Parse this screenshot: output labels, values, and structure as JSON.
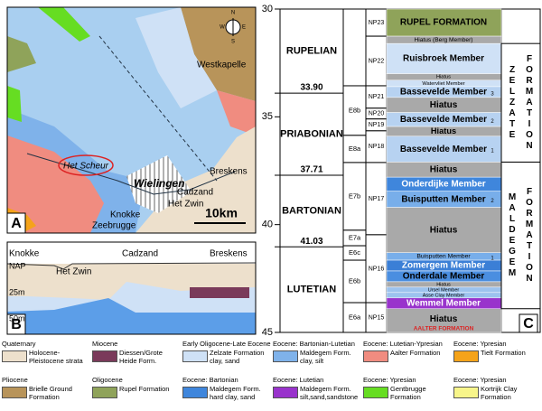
{
  "panel_a": {
    "label": "A",
    "compass": [
      "N",
      "E",
      "S",
      "W"
    ],
    "places": [
      "Westkapelle",
      "Het Scheur",
      "Wielingen",
      "Breskens",
      "Cadzand",
      "Het Zwin",
      "Knokke",
      "Zeebrugge"
    ],
    "scale": "10km"
  },
  "panel_b": {
    "label": "B",
    "places": [
      "Knokke",
      "Het Zwin",
      "Cadzand",
      "Breskens"
    ],
    "depths": [
      "NAP",
      "25m",
      "50m"
    ]
  },
  "panel_c": {
    "label": "C",
    "ylim": [
      30,
      45
    ],
    "yticks": [
      30,
      35,
      40,
      45
    ],
    "stages": [
      "RUPELIAN",
      "PRIABONIAN",
      "BARTONIAN",
      "LUTETIAN"
    ],
    "boundaries": [
      {
        "value": 33.9,
        "label": "33.90"
      },
      {
        "value": 37.71,
        "label": "37.71"
      },
      {
        "value": 41.03,
        "label": "41.03"
      }
    ],
    "e_zones": [
      {
        "name": null,
        "bottom": 33.56
      },
      {
        "name": "E8b",
        "bottom": 35.86
      },
      {
        "name": "E8a",
        "bottom": 37.12
      },
      {
        "name": "E7b",
        "bottom": 40.26
      },
      {
        "name": "E7a",
        "bottom": 40.98
      },
      {
        "name": "E6c",
        "bottom": 41.65
      },
      {
        "name": "E6b",
        "bottom": 43.62
      },
      {
        "name": "E6a",
        "bottom": 45
      }
    ],
    "np_zones": [
      {
        "name": "NP23",
        "bottom": 31.26
      },
      {
        "name": "NP22",
        "bottom": 33.56
      },
      {
        "name": "NP21",
        "bottom": 34.6
      },
      {
        "name": "NP20",
        "bottom": 35.1
      },
      {
        "name": "NP19",
        "bottom": 35.65
      },
      {
        "name": "NP18",
        "bottom": 37.12
      },
      {
        "name": "NP17",
        "bottom": 40.47
      },
      {
        "name": "NP16",
        "bottom": 43.62
      },
      {
        "name": "NP15",
        "bottom": 45
      }
    ],
    "members": [
      {
        "name": "RUPEL FORMATION",
        "bottom": 31.26,
        "color": "#8fa35a"
      },
      {
        "name": "Hiatus (Berg Member)",
        "bottom": 31.6,
        "color": "#a9a9a9"
      },
      {
        "name": "Ruisbroek Member",
        "bottom": 33.0,
        "color": "#cfe1f6"
      },
      {
        "name": "Hiatus",
        "bottom": 33.3,
        "color": "#a9a9a9"
      },
      {
        "name": "Watervliet Member",
        "bottom": 33.6,
        "color": "#cfe1f6"
      },
      {
        "name": "Bassevelde Member",
        "index": "3",
        "bottom": 34.1,
        "color": "#b7d2f1"
      },
      {
        "name": "Hiatus",
        "bottom": 34.8,
        "color": "#a9a9a9"
      },
      {
        "name": "Bassevelde Member",
        "index": "2",
        "bottom": 35.45,
        "color": "#b7d2f1"
      },
      {
        "name": "Hiatus",
        "bottom": 35.9,
        "color": "#a9a9a9"
      },
      {
        "name": "Bassevelde Member",
        "index": "1",
        "bottom": 37.1,
        "color": "#b7d2f1"
      },
      {
        "name": "Hiatus",
        "bottom": 37.8,
        "color": "#a9a9a9"
      },
      {
        "name": "Onderdijke Member",
        "bottom": 38.45,
        "color": "#3f86dc"
      },
      {
        "name": "Buisputten Member",
        "index": "2",
        "bottom": 39.2,
        "color": "#78aeea"
      },
      {
        "name": "Hiatus",
        "bottom": 41.3,
        "color": "#a9a9a9"
      },
      {
        "name": "Buisputten Member",
        "index": "1",
        "bottom": 41.65,
        "color": "#78aeea"
      },
      {
        "name": "Zomergem Member",
        "bottom": 42.15,
        "color": "#3b7fd6"
      },
      {
        "name": "Onderdale Member",
        "bottom": 42.65,
        "color": "#4a8ee0"
      },
      {
        "name": "Hiatus",
        "bottom": 42.9,
        "color": "#a9a9a9"
      },
      {
        "name": "Ursel Member",
        "bottom": 43.15,
        "color": "#9cc3ee"
      },
      {
        "name": "Asse Clay Member",
        "bottom": 43.4,
        "color": "#9cc3ee"
      },
      {
        "name": "Wemmel Member",
        "bottom": 43.9,
        "color": "#9933cc"
      },
      {
        "name": "Hiatus",
        "note": "AALTER FORMATION",
        "bottom": 45,
        "color": "#a9a9a9"
      }
    ],
    "formations": [
      {
        "name": "ZELZATE",
        "sub": "FORMATION",
        "top": 31.6,
        "bottom": 37.1
      },
      {
        "name": "MALDEGEM",
        "sub": "FORMATION",
        "top": 37.1,
        "bottom": 43.9
      }
    ]
  },
  "legend": [
    {
      "group": "Quaternary",
      "label": "Holocene-Pleistocene strata",
      "color": "#ede0cc"
    },
    {
      "group": "Miocene",
      "label": "Diessen/Grote Heide Form.",
      "color": "#7a3a5a"
    },
    {
      "group": "Early Oligocene-Late Eocene",
      "label": "Zelzate Formation clay, sand",
      "color": "#cfe1f6"
    },
    {
      "group": "Eocene: Bartonian-Lutetian",
      "label": "Maldegem Form. clay, silt",
      "color": "#7fb2ea"
    },
    {
      "group": "Eocene: Lutetian-Ypresian",
      "label": "Aalter Formation",
      "color": "#f08c80"
    },
    {
      "group": "Eocene: Ypresian",
      "label": "Tielt Formation",
      "color": "#f5a31a"
    },
    {
      "group": "Pliocene",
      "label": "Brielle Ground Formation",
      "color": "#b8945a"
    },
    {
      "group": "Oligocene",
      "label": "Rupel Formation",
      "color": "#8fa35a"
    },
    {
      "group": "Eocene: Bartonian",
      "label": "Maldegem Form. hard clay, sand",
      "color": "#3f86dc"
    },
    {
      "group": "Eocene: Lutetian",
      "label": "Maldegem Form. silt,sand,sandstone",
      "color": "#9933cc"
    },
    {
      "group": "Eocene: Ypresian",
      "label": "Gentbrugge Formation",
      "color": "#66dd22"
    },
    {
      "group": "Eocene: Ypresian",
      "label": "Kortrijk Clay Formation",
      "color": "#f7f58a"
    }
  ]
}
